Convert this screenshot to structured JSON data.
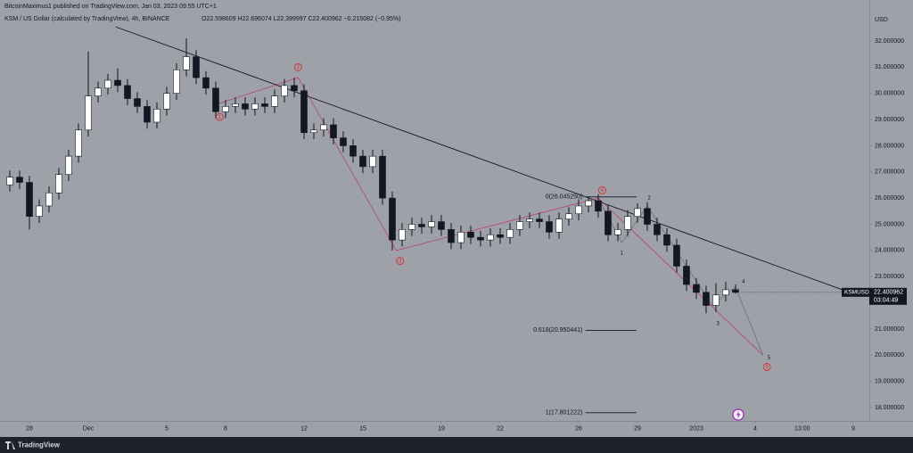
{
  "chart_data": {
    "type": "candlestick",
    "publisher": "BitcoinMaximus1 published on TradingView.com, Jan 03, 2023 09:55 UTC+1",
    "title": "KSM / US Dollar (calculated by TradingView), 4h, BINANCE",
    "ohlc_text": "O22.598609 H22.696074 L22.399997 C22.400962 −0.215082 (−0.95%)",
    "y_unit": "USD",
    "brand": "TradingView",
    "symbol_tag": "KSMUSD",
    "last_price": 22.400962,
    "countdown": "03:04:49",
    "up_color": "#ffffff",
    "down_color": "#131722",
    "xlim": [
      -1.5,
      42.82
    ],
    "ylim": [
      17.5,
      33.3
    ],
    "xticks": [
      {
        "value": 0,
        "label": "28"
      },
      {
        "value": 3,
        "label": "Dec"
      },
      {
        "value": 7,
        "label": "5"
      },
      {
        "value": 10,
        "label": "8"
      },
      {
        "value": 14,
        "label": "12"
      },
      {
        "value": 17,
        "label": "15"
      },
      {
        "value": 21,
        "label": "19"
      },
      {
        "value": 24,
        "label": "22"
      },
      {
        "value": 28,
        "label": "26"
      },
      {
        "value": 31,
        "label": "29"
      },
      {
        "value": 34,
        "label": "2023"
      },
      {
        "value": 37,
        "label": "4"
      },
      {
        "value": 39.4,
        "label": "13:00"
      },
      {
        "value": 42,
        "label": "9"
      }
    ],
    "yticks": [
      {
        "value": 18,
        "label": "18.000000"
      },
      {
        "value": 19,
        "label": "19.000000"
      },
      {
        "value": 20,
        "label": "20.000000"
      },
      {
        "value": 21,
        "label": "21.000000"
      },
      {
        "value": 22,
        "label": "22.000000"
      },
      {
        "value": 23,
        "label": "23.000000"
      },
      {
        "value": 24,
        "label": "24.000000"
      },
      {
        "value": 25,
        "label": "25.000000"
      },
      {
        "value": 26,
        "label": "26.000000"
      },
      {
        "value": 27,
        "label": "27.000000"
      },
      {
        "value": 28,
        "label": "28.000000"
      },
      {
        "value": 29,
        "label": "29.000000"
      },
      {
        "value": 30,
        "label": "30.000000"
      },
      {
        "value": 31,
        "label": "31.000000"
      },
      {
        "value": 32,
        "label": "32.000000"
      }
    ],
    "fib_levels": [
      {
        "value": 26.04525,
        "label": "0(26.045250)"
      },
      {
        "value": 20.950441,
        "label": "0.618(20.950441)"
      },
      {
        "value": 17.801222,
        "label": "1(17.801222)"
      }
    ],
    "wave_labels": [
      "1",
      "2",
      "3",
      "4",
      "5"
    ],
    "subwave_labels": [
      "1",
      "2",
      "3",
      "4",
      "5"
    ],
    "candles": [
      [
        -1,
        26.5,
        27.05,
        26.25,
        26.8
      ],
      [
        -0.5,
        26.8,
        27.05,
        26.35,
        26.6
      ],
      [
        0,
        26.6,
        26.85,
        24.8,
        25.3
      ],
      [
        0.5,
        25.3,
        25.95,
        25.05,
        25.7
      ],
      [
        1,
        25.7,
        26.45,
        25.45,
        26.2
      ],
      [
        1.5,
        26.2,
        27.15,
        25.95,
        26.9
      ],
      [
        2,
        26.9,
        27.85,
        26.65,
        27.6
      ],
      [
        2.5,
        27.6,
        28.85,
        27.35,
        28.6
      ],
      [
        3,
        28.6,
        31.6,
        28.35,
        29.9
      ],
      [
        3.5,
        29.9,
        30.45,
        29.65,
        30.2
      ],
      [
        4,
        30.2,
        30.75,
        29.95,
        30.5
      ],
      [
        4.5,
        30.5,
        30.95,
        30.05,
        30.3
      ],
      [
        5,
        30.3,
        30.55,
        29.55,
        29.8
      ],
      [
        5.5,
        29.8,
        30.05,
        29.25,
        29.5
      ],
      [
        6,
        29.5,
        29.75,
        28.65,
        28.9
      ],
      [
        6.5,
        28.9,
        29.65,
        28.65,
        29.4
      ],
      [
        7,
        29.4,
        30.25,
        29.15,
        30.0
      ],
      [
        7.5,
        30.0,
        31.15,
        29.75,
        30.9
      ],
      [
        8,
        30.9,
        32.1,
        30.65,
        31.4
      ],
      [
        8.5,
        31.4,
        31.65,
        30.35,
        30.6
      ],
      [
        9,
        30.6,
        30.85,
        29.95,
        30.2
      ],
      [
        9.5,
        30.2,
        30.45,
        29.05,
        29.3
      ],
      [
        10,
        29.3,
        29.75,
        29.05,
        29.5
      ],
      [
        10.5,
        29.5,
        29.85,
        29.25,
        29.6
      ],
      [
        11,
        29.6,
        29.85,
        29.15,
        29.4
      ],
      [
        11.5,
        29.4,
        29.85,
        29.15,
        29.6
      ],
      [
        12,
        29.6,
        29.85,
        29.25,
        29.5
      ],
      [
        12.5,
        29.5,
        30.15,
        29.25,
        29.9
      ],
      [
        13,
        29.9,
        30.55,
        29.65,
        30.3
      ],
      [
        13.5,
        30.3,
        30.6,
        29.85,
        30.1
      ],
      [
        14,
        30.1,
        30.35,
        28.25,
        28.5
      ],
      [
        14.5,
        28.5,
        28.85,
        28.25,
        28.6
      ],
      [
        15,
        28.6,
        29.05,
        28.35,
        28.8
      ],
      [
        15.5,
        28.8,
        29.05,
        28.05,
        28.3
      ],
      [
        16,
        28.3,
        28.55,
        27.75,
        28.0
      ],
      [
        16.5,
        28.0,
        28.25,
        27.35,
        27.6
      ],
      [
        17,
        27.6,
        27.85,
        26.95,
        27.2
      ],
      [
        17.5,
        27.2,
        27.85,
        26.95,
        27.6
      ],
      [
        18,
        27.6,
        27.85,
        25.75,
        26.0
      ],
      [
        18.5,
        26.0,
        26.25,
        24.0,
        24.4
      ],
      [
        19,
        24.4,
        25.05,
        24.15,
        24.8
      ],
      [
        19.5,
        24.8,
        25.25,
        24.55,
        25.0
      ],
      [
        20,
        25.0,
        25.25,
        24.65,
        24.9
      ],
      [
        20.5,
        24.9,
        25.35,
        24.65,
        25.1
      ],
      [
        21,
        25.1,
        25.35,
        24.55,
        24.8
      ],
      [
        21.5,
        24.8,
        25.05,
        24.05,
        24.3
      ],
      [
        22,
        24.3,
        24.95,
        24.05,
        24.7
      ],
      [
        22.5,
        24.7,
        24.95,
        24.25,
        24.5
      ],
      [
        23,
        24.5,
        24.75,
        24.15,
        24.4
      ],
      [
        23.5,
        24.4,
        24.85,
        24.15,
        24.6
      ],
      [
        24,
        24.6,
        24.85,
        24.25,
        24.5
      ],
      [
        24.5,
        24.5,
        25.05,
        24.25,
        24.8
      ],
      [
        25,
        24.8,
        25.35,
        24.55,
        25.1
      ],
      [
        25.5,
        25.1,
        25.45,
        24.85,
        25.2
      ],
      [
        26,
        25.2,
        25.45,
        24.85,
        25.1
      ],
      [
        26.5,
        25.1,
        25.35,
        24.45,
        24.7
      ],
      [
        27,
        24.7,
        25.45,
        24.45,
        25.2
      ],
      [
        27.5,
        25.2,
        25.65,
        24.95,
        25.4
      ],
      [
        28,
        25.4,
        25.95,
        25.15,
        25.7
      ],
      [
        28.5,
        25.7,
        26.05,
        25.45,
        25.9
      ],
      [
        29,
        25.9,
        26.15,
        25.25,
        25.5
      ],
      [
        29.5,
        25.5,
        25.75,
        24.35,
        24.6
      ],
      [
        30,
        24.6,
        25.05,
        24.35,
        24.8
      ],
      [
        30.5,
        24.8,
        25.55,
        24.55,
        25.3
      ],
      [
        31,
        25.3,
        25.8,
        25.05,
        25.6
      ],
      [
        31.5,
        25.6,
        25.85,
        24.75,
        25.0
      ],
      [
        32,
        25.0,
        25.25,
        24.35,
        24.6
      ],
      [
        32.5,
        24.6,
        24.85,
        23.95,
        24.2
      ],
      [
        33,
        24.2,
        24.45,
        23.15,
        23.4
      ],
      [
        33.5,
        23.4,
        23.65,
        22.45,
        22.7
      ],
      [
        34,
        22.7,
        22.95,
        22.15,
        22.4
      ],
      [
        34.5,
        22.4,
        22.65,
        21.6,
        21.9
      ],
      [
        35,
        21.9,
        22.75,
        21.65,
        22.3
      ],
      [
        35.5,
        22.3,
        22.8,
        22.05,
        22.5
      ],
      [
        36,
        22.5,
        22.7,
        22.35,
        22.4
      ]
    ]
  }
}
